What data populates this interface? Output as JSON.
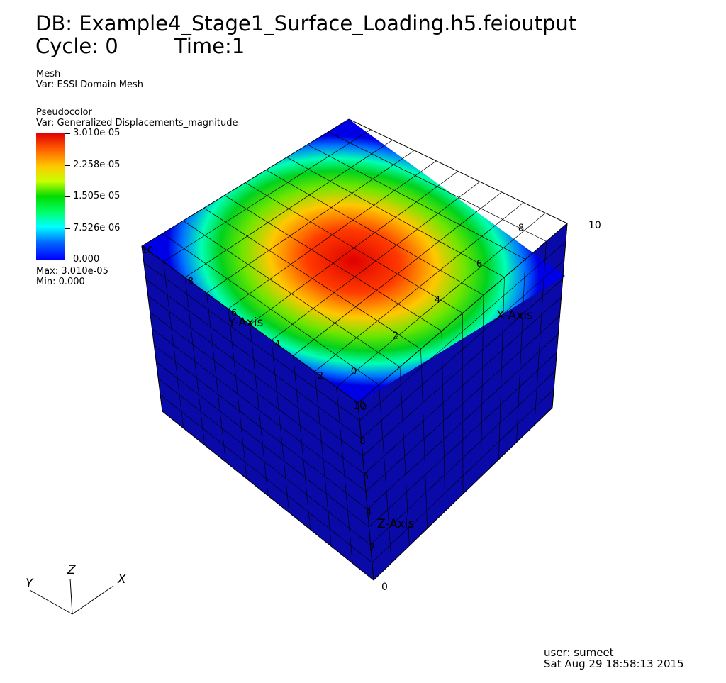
{
  "header": {
    "db_label": "DB: Example4_Stage1_Surface_Loading.h5.feioutput",
    "cycle_label": "Cycle: 0",
    "time_label": "Time:1"
  },
  "mesh_plot": {
    "title": "Mesh",
    "var": "Var: ESSI Domain Mesh"
  },
  "pseudocolor_plot": {
    "title": "Pseudocolor",
    "var": "Var: Generalized Displacements_magnitude",
    "legend_ticks": [
      "3.010e-05",
      "2.258e-05",
      "1.505e-05",
      "7.526e-06",
      "0.000"
    ],
    "max_label": "Max:  3.010e-05",
    "min_label": "Min:  0.000",
    "colormap": [
      "#e00000",
      "#ff5a00",
      "#ffc800",
      "#c8ff00",
      "#00dc00",
      "#00ff64",
      "#00ffff",
      "#0064ff",
      "#0000ff"
    ]
  },
  "axes3d": {
    "x_axis_title": "X-Axis",
    "y_axis_title": "Y-Axis",
    "z_axis_title": "Z-Axis",
    "x_ticks": [
      "0",
      "2",
      "4",
      "6",
      "8",
      "10"
    ],
    "y_ticks": [
      "0",
      "2",
      "4",
      "6",
      "8",
      "10"
    ],
    "z_ticks": [
      "0",
      "2",
      "4",
      "6",
      "8",
      "10"
    ]
  },
  "triad": {
    "x": "X",
    "y": "Y",
    "z": "Z"
  },
  "footer": {
    "user": "user: sumeet",
    "timestamp": "Sat Aug 29 18:58:13 2015"
  },
  "colors": {
    "side_face": "#0a0aa8",
    "top_edge": "#1a1aff",
    "grid_line": "#000000"
  }
}
